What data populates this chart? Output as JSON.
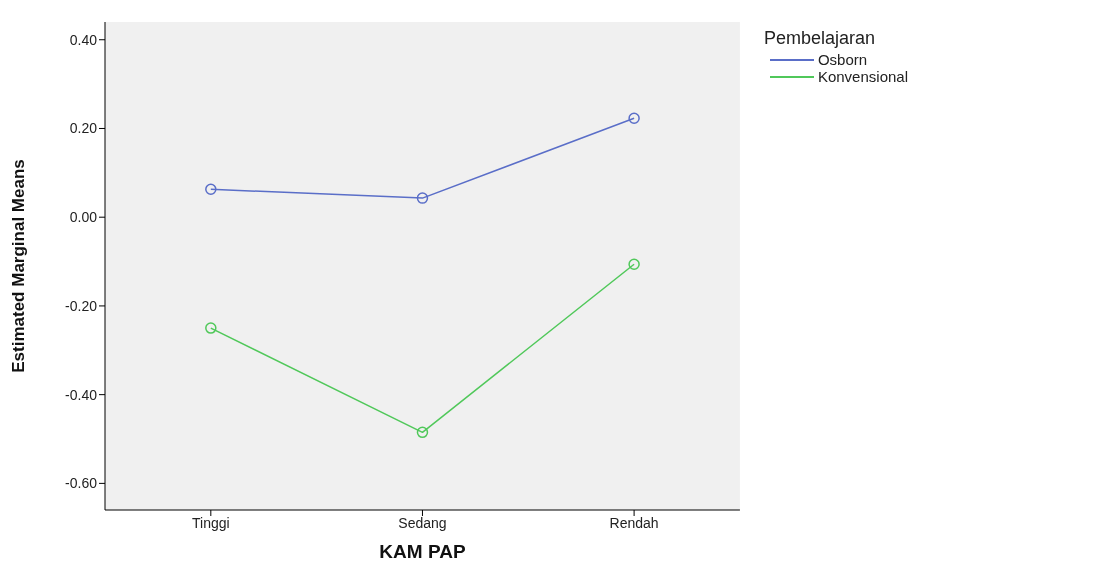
{
  "chart_data": {
    "type": "line",
    "xlabel": "KAM  PAP",
    "ylabel": "Estimated Marginal Means",
    "legend_title": "Pembelajaran",
    "categories": [
      "Tinggi",
      "Sedang",
      "Rendah"
    ],
    "series": [
      {
        "name": "Osborn",
        "color": "#5a6ec8",
        "values": [
          0.063,
          0.043,
          0.223
        ]
      },
      {
        "name": "Konvensional",
        "color": "#50c85a",
        "values": [
          -0.25,
          -0.485,
          -0.106
        ]
      }
    ],
    "ylim": [
      -0.66,
      0.44
    ],
    "yticks": [
      {
        "value": -0.6,
        "label": "-0.60"
      },
      {
        "value": -0.4,
        "label": "-0.40"
      },
      {
        "value": -0.2,
        "label": "-0.20"
      },
      {
        "value": 0,
        "label": "0.00"
      },
      {
        "value": 0.2,
        "label": "0.20"
      },
      {
        "value": 0.4,
        "label": "0.40"
      }
    ],
    "grid": false,
    "legend": "top right",
    "marker": "circle",
    "line_style": "solid"
  }
}
